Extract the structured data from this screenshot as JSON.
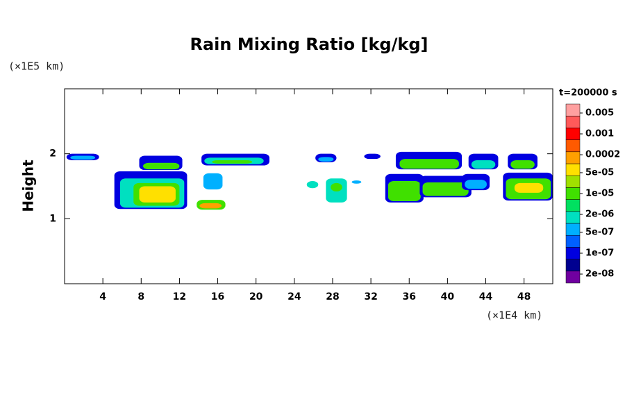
{
  "chart_data": {
    "type": "contour",
    "title": "Rain Mixing Ratio [kg/kg]",
    "y_label": "Height",
    "y_unit": "(×1E5 km)",
    "x_unit": "(×1E4 km)",
    "annotation": "t=200000 s",
    "xlim": [
      0,
      51
    ],
    "xticks": [
      4,
      8,
      12,
      16,
      20,
      24,
      28,
      32,
      36,
      40,
      44,
      48
    ],
    "ylim": [
      0,
      3
    ],
    "yticks": [
      1,
      2
    ],
    "colorbar": {
      "log": true,
      "clim": [
        1e-08,
        0.01
      ],
      "colors": [
        "#7000a0",
        "#000090",
        "#0000e0",
        "#0060ff",
        "#00b0ff",
        "#00e0c0",
        "#00e060",
        "#40e000",
        "#a0e000",
        "#ffe000",
        "#ffa000",
        "#ff5a00",
        "#ff0000",
        "#ff5a5a",
        "#ffa0a0"
      ],
      "ticks": [
        0.005,
        0.001,
        0.0002,
        {
          "value": 5e-05,
          "label": "5e-05"
        },
        {
          "value": 1e-05,
          "label": "1e-05"
        },
        {
          "value": 2e-06,
          "label": "2e-06"
        },
        {
          "value": 5e-07,
          "label": "5e-07"
        },
        {
          "value": 1e-07,
          "label": "1e-07"
        },
        {
          "value": 2e-08,
          "label": "2e-08"
        }
      ]
    },
    "regions": [
      {
        "x": [
          0.2,
          3.6
        ],
        "y": [
          1.9,
          2.0
        ],
        "value": 1e-07
      },
      {
        "x": [
          0.6,
          3.2
        ],
        "y": [
          1.91,
          1.97
        ],
        "value": 5e-07
      },
      {
        "x": [
          7.8,
          12.3
        ],
        "y": [
          1.75,
          1.97
        ],
        "value": 1e-07
      },
      {
        "x": [
          8.2,
          12.0
        ],
        "y": [
          1.76,
          1.86
        ],
        "value": 1e-05
      },
      {
        "x": [
          5.2,
          12.8
        ],
        "y": [
          1.15,
          1.73
        ],
        "value": 1e-07
      },
      {
        "x": [
          5.8,
          12.5
        ],
        "y": [
          1.17,
          1.62
        ],
        "value": 2e-06
      },
      {
        "x": [
          7.2,
          12.0
        ],
        "y": [
          1.2,
          1.55
        ],
        "value": 1e-05
      },
      {
        "x": [
          7.8,
          11.6
        ],
        "y": [
          1.25,
          1.5
        ],
        "value": 5e-05
      },
      {
        "x": [
          13.8,
          16.8
        ],
        "y": [
          1.14,
          1.29
        ],
        "value": 1e-05
      },
      {
        "x": [
          14.1,
          16.4
        ],
        "y": [
          1.16,
          1.24
        ],
        "value": 0.0002
      },
      {
        "x": [
          14.3,
          21.4
        ],
        "y": [
          1.82,
          2.0
        ],
        "value": 1e-07
      },
      {
        "x": [
          14.6,
          20.8
        ],
        "y": [
          1.84,
          1.94
        ],
        "value": 2e-06
      },
      {
        "x": [
          15.4,
          19.6
        ],
        "y": [
          1.85,
          1.9
        ],
        "value": 1e-05
      },
      {
        "x": [
          14.5,
          16.5
        ],
        "y": [
          1.45,
          1.7
        ],
        "value": 5e-07
      },
      {
        "x": [
          26.2,
          28.4
        ],
        "y": [
          1.87,
          2.0
        ],
        "value": 1e-07
      },
      {
        "x": [
          26.5,
          28.1
        ],
        "y": [
          1.88,
          1.95
        ],
        "value": 5e-07
      },
      {
        "x": [
          25.3,
          26.5
        ],
        "y": [
          1.47,
          1.58
        ],
        "value": 2e-06
      },
      {
        "x": [
          27.3,
          29.5
        ],
        "y": [
          1.25,
          1.62
        ],
        "value": 2e-06
      },
      {
        "x": [
          27.8,
          29.0
        ],
        "y": [
          1.42,
          1.55
        ],
        "value": 1e-05
      },
      {
        "x": [
          30.0,
          31.0
        ],
        "y": [
          1.54,
          1.59
        ],
        "value": 5e-07
      },
      {
        "x": [
          31.3,
          33.0
        ],
        "y": [
          1.92,
          2.0
        ],
        "value": 1e-07
      },
      {
        "x": [
          34.6,
          41.5
        ],
        "y": [
          1.76,
          2.03
        ],
        "value": 1e-07
      },
      {
        "x": [
          35.0,
          41.2
        ],
        "y": [
          1.77,
          1.92
        ],
        "value": 1e-05
      },
      {
        "x": [
          42.2,
          45.3
        ],
        "y": [
          1.76,
          2.0
        ],
        "value": 1e-07
      },
      {
        "x": [
          42.5,
          45.0
        ],
        "y": [
          1.77,
          1.9
        ],
        "value": 2e-06
      },
      {
        "x": [
          46.3,
          49.4
        ],
        "y": [
          1.76,
          2.0
        ],
        "value": 1e-07
      },
      {
        "x": [
          46.6,
          49.1
        ],
        "y": [
          1.77,
          1.9
        ],
        "value": 1e-05
      },
      {
        "x": [
          33.5,
          37.5
        ],
        "y": [
          1.25,
          1.69
        ],
        "value": 1e-07
      },
      {
        "x": [
          33.8,
          37.2
        ],
        "y": [
          1.27,
          1.58
        ],
        "value": 1e-05
      },
      {
        "x": [
          37.1,
          42.5
        ],
        "y": [
          1.33,
          1.66
        ],
        "value": 1e-07
      },
      {
        "x": [
          37.4,
          42.2
        ],
        "y": [
          1.35,
          1.56
        ],
        "value": 1e-05
      },
      {
        "x": [
          41.5,
          44.4
        ],
        "y": [
          1.44,
          1.69
        ],
        "value": 1e-07
      },
      {
        "x": [
          41.8,
          44.1
        ],
        "y": [
          1.46,
          1.6
        ],
        "value": 5e-07
      },
      {
        "x": [
          45.8,
          51.0
        ],
        "y": [
          1.28,
          1.71
        ],
        "value": 1e-07
      },
      {
        "x": [
          46.1,
          50.8
        ],
        "y": [
          1.3,
          1.62
        ],
        "value": 1e-05
      },
      {
        "x": [
          47.0,
          50.0
        ],
        "y": [
          1.4,
          1.55
        ],
        "value": 5e-05
      }
    ]
  }
}
